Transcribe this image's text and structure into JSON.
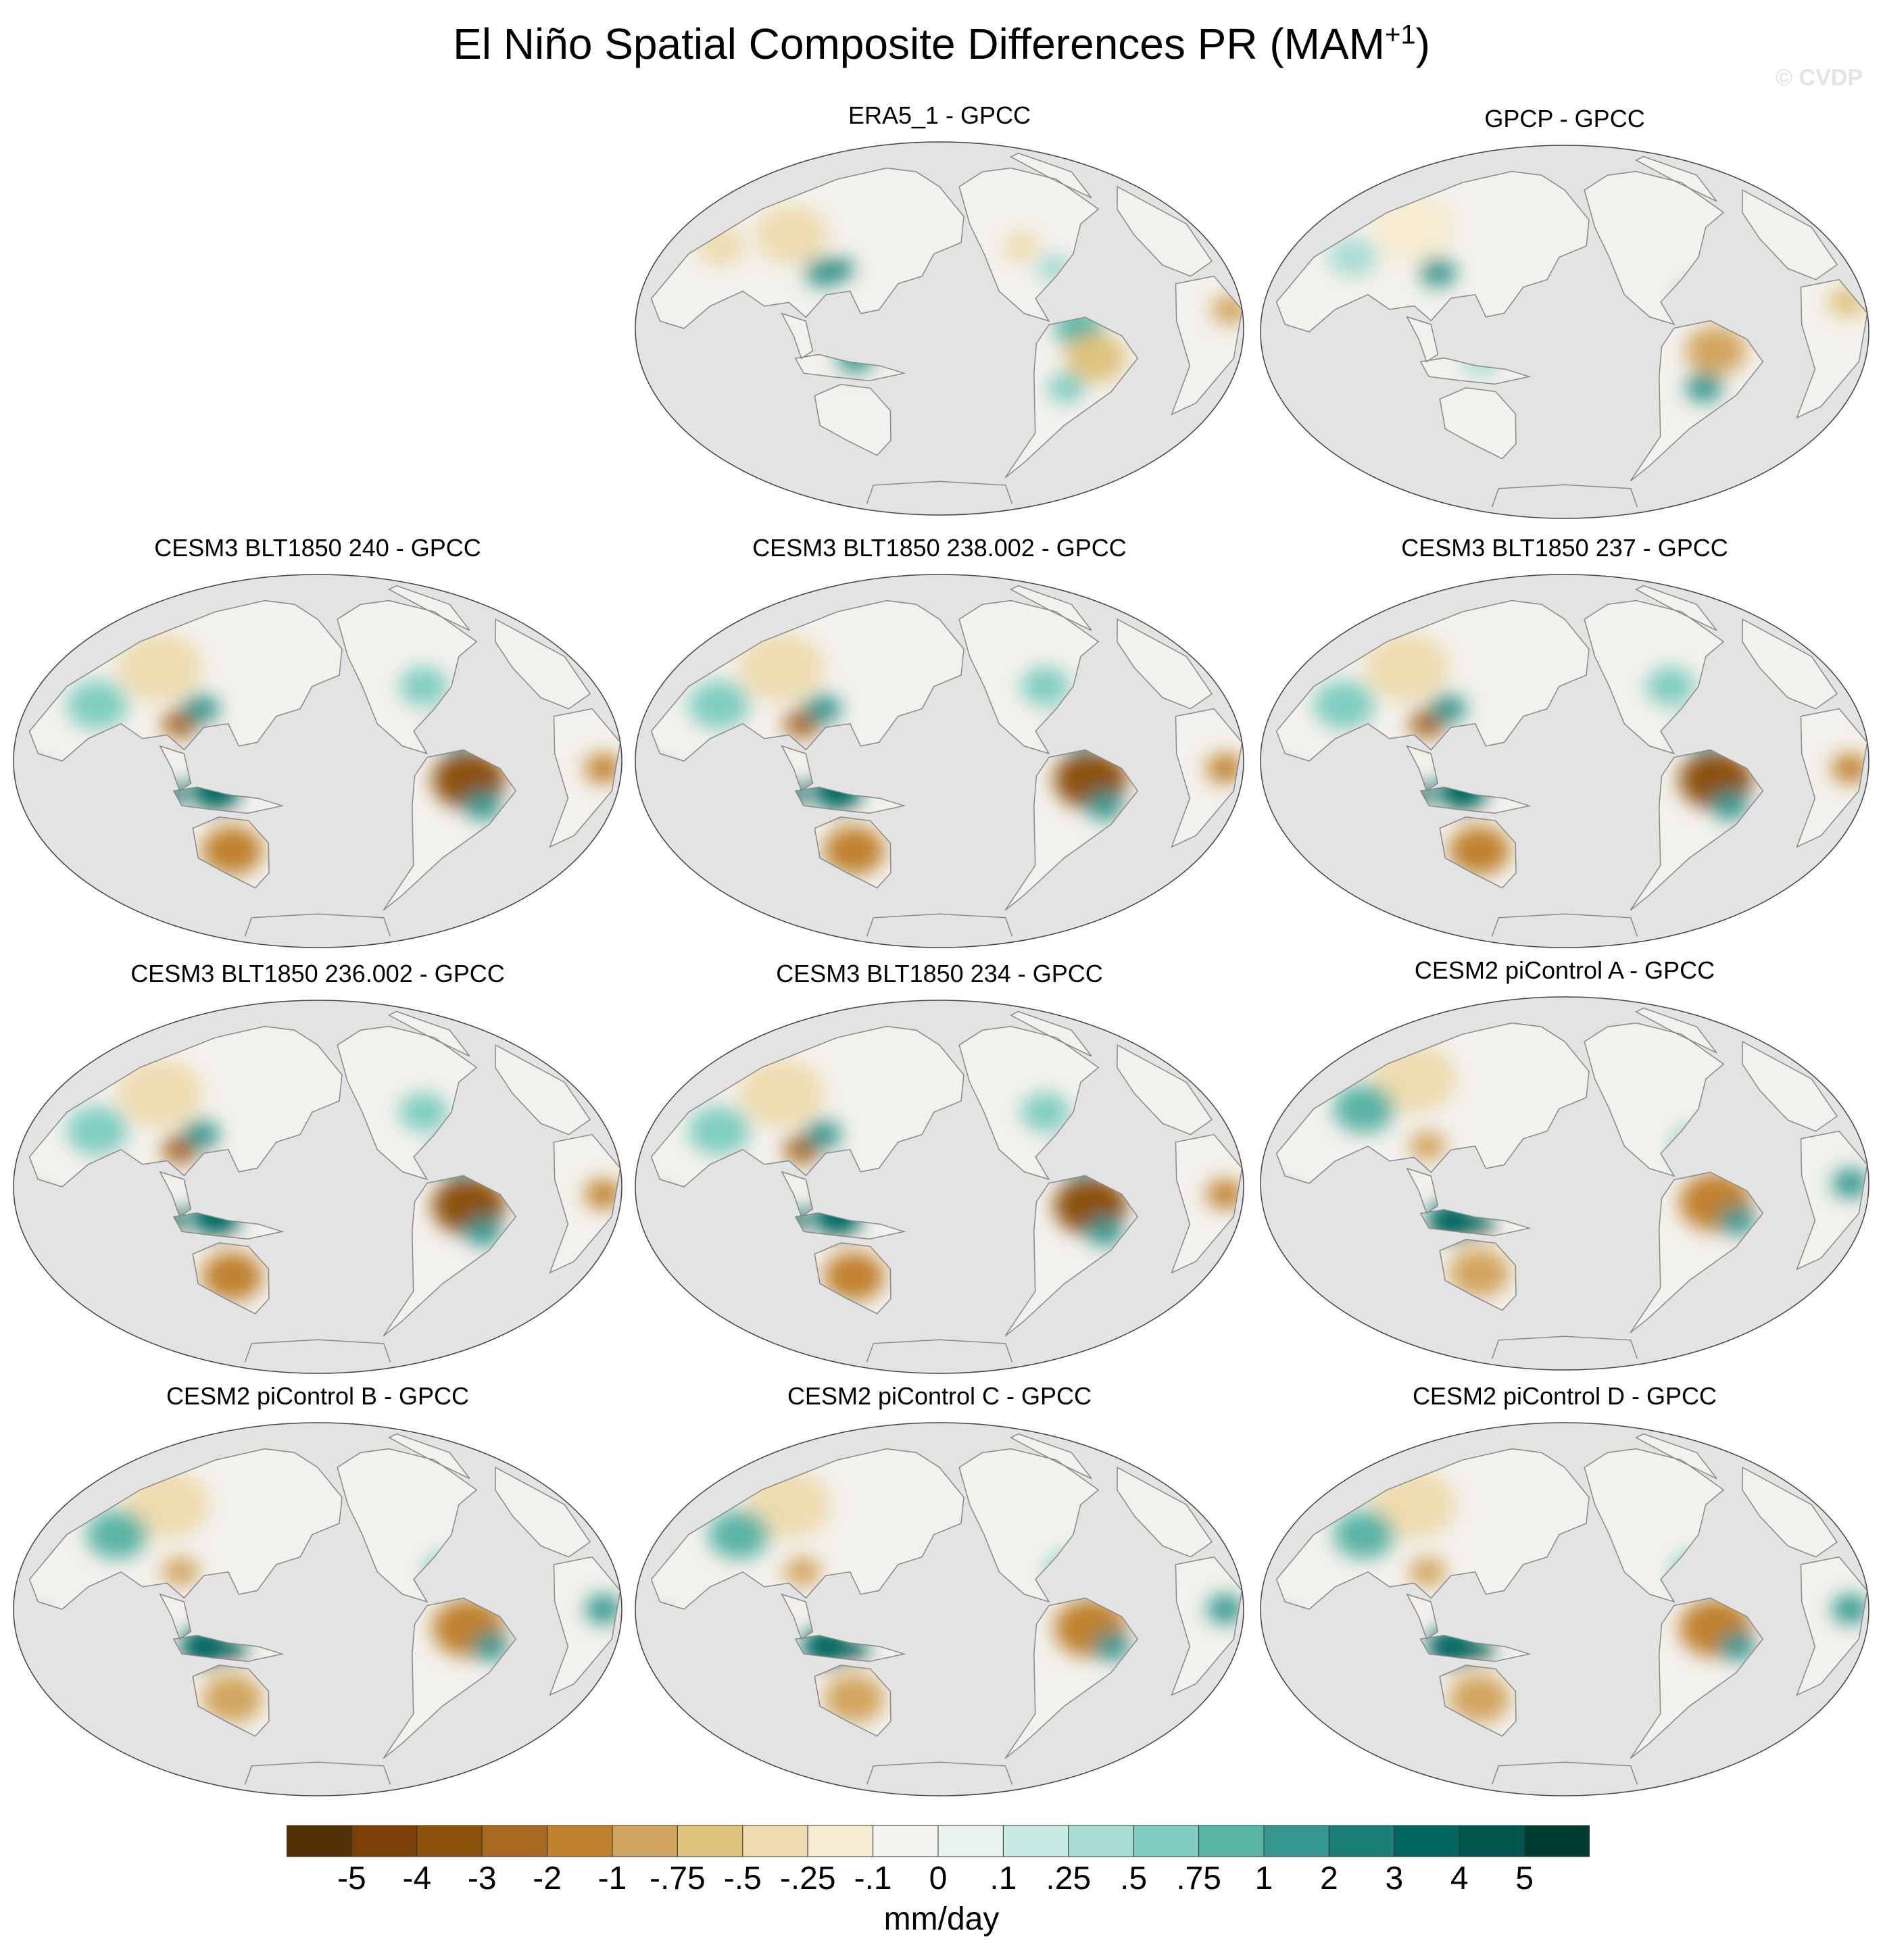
{
  "figure": {
    "title_main": "El Niño Spatial Composite Differences PR (MAM",
    "title_sup": "+1",
    "title_end": ")",
    "watermark": "© CVDP"
  },
  "panels": [
    {
      "title": "ERA5_1 - GPCC",
      "pattern": "obs_era5"
    },
    {
      "title": "GPCP - GPCC",
      "pattern": "obs_gpcp"
    },
    {
      "title": "CESM3 BLT1850 240 - GPCC",
      "pattern": "model_strong"
    },
    {
      "title": "CESM3 BLT1850 238.002 - GPCC",
      "pattern": "model_strong"
    },
    {
      "title": "CESM3 BLT1850 237 - GPCC",
      "pattern": "model_strong"
    },
    {
      "title": "CESM3 BLT1850 236.002 - GPCC",
      "pattern": "model_strong"
    },
    {
      "title": "CESM3 BLT1850 234 - GPCC",
      "pattern": "model_strong"
    },
    {
      "title": "CESM2 piControl A - GPCC",
      "pattern": "model_moderate"
    },
    {
      "title": "CESM2 piControl B - GPCC",
      "pattern": "model_moderate"
    },
    {
      "title": "CESM2 piControl C - GPCC",
      "pattern": "model_moderate"
    },
    {
      "title": "CESM2 piControl D - GPCC",
      "pattern": "model_moderate"
    }
  ],
  "colorbar": {
    "colors": [
      "#543005",
      "#7a4008",
      "#8c510a",
      "#a86a20",
      "#bf812d",
      "#d2a55e",
      "#dfc27d",
      "#eedcb0",
      "#f6ecd2",
      "#f5f3ef",
      "#e8f3f0",
      "#c7eae5",
      "#a9dcd3",
      "#80cdc1",
      "#5ab4a6",
      "#35978f",
      "#1c7f76",
      "#01665e",
      "#01574f",
      "#003c30"
    ],
    "labels": [
      "-5",
      "-4",
      "-3",
      "-2",
      "-1",
      "-.75",
      "-.5",
      "-.25",
      "-.1",
      "0",
      ".1",
      ".25",
      ".5",
      ".75",
      "1",
      "2",
      "3",
      "4",
      "5"
    ],
    "units": "mm/day"
  },
  "map_style": {
    "ocean_color": "#e3e3e3",
    "land_background": "#f3f1ec",
    "coast_color": "#888888"
  }
}
